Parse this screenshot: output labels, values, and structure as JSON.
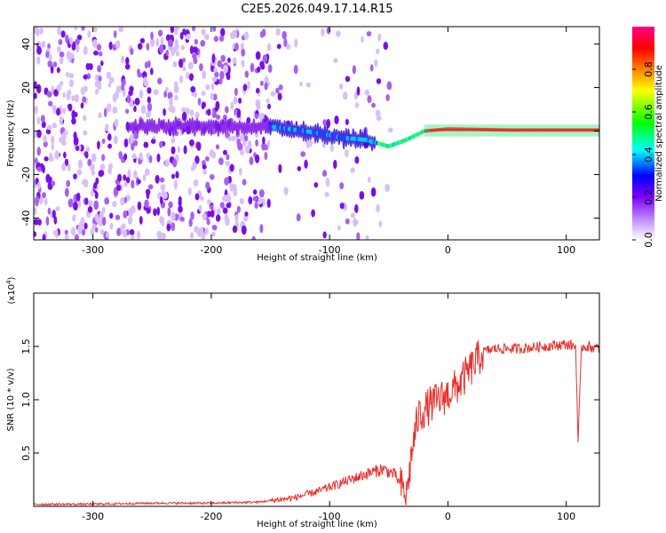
{
  "chart_data": [
    {
      "type": "heatmap",
      "title": "C2E5.2026.049.17.14.R15",
      "xlabel": "Height of straight line (km)",
      "ylabel": "Frequency (Hz)",
      "xlim": [
        -350,
        128
      ],
      "ylim": [
        -50,
        48
      ],
      "xticks": [
        -300,
        -200,
        -100,
        0,
        100
      ],
      "yticks": [
        -40,
        -20,
        0,
        20,
        40
      ],
      "colorbar": {
        "label": "Normalized spectral amplitude",
        "range": [
          0,
          1
        ],
        "ticks": [
          "0.0",
          "0.2",
          "0.4",
          "0.6",
          "0.8"
        ],
        "tick_values": [
          0.0,
          0.2,
          0.4,
          0.6,
          0.8
        ],
        "colors": [
          "#ffffff",
          "#8000ff",
          "#0000ff",
          "#00ffff",
          "#00ff00",
          "#ffff00",
          "#ff8000",
          "#ff0000",
          "#ff00aa"
        ]
      },
      "ridge": {
        "description": "carrier track",
        "points": [
          [
            -150,
            2
          ],
          [
            -120,
            0
          ],
          [
            -90,
            -3
          ],
          [
            -70,
            -4
          ],
          [
            -50,
            -7
          ],
          [
            -35,
            -4
          ],
          [
            -20,
            0
          ],
          [
            -10,
            0.5
          ],
          [
            0,
            1
          ],
          [
            50,
            0.5
          ],
          [
            128,
            0.5
          ]
        ]
      }
    },
    {
      "type": "line",
      "xlabel": "Height of straight line (km)",
      "ylabel": "SNR (10 * v/v)",
      "yscale_label": "(x10",
      "yscale_exp": "4",
      "yscale_close": ")",
      "xlim": [
        -350,
        128
      ],
      "ylim": [
        0,
        2.0
      ],
      "xticks": [
        -300,
        -200,
        -100,
        0,
        100
      ],
      "yticks": [
        "0.5",
        "1.0",
        "1.5"
      ],
      "ytick_values": [
        0.5,
        1.0,
        1.5
      ],
      "color": "#e8302c",
      "series": [
        {
          "name": "SNR",
          "x": [
            -350,
            -300,
            -250,
            -200,
            -160,
            -130,
            -110,
            -90,
            -70,
            -55,
            -45,
            -35,
            -30,
            -25,
            -15,
            0,
            10,
            20,
            30,
            40,
            60,
            80,
            100,
            108,
            110,
            113,
            118,
            128
          ],
          "y": [
            0.02,
            0.02,
            0.03,
            0.03,
            0.04,
            0.08,
            0.14,
            0.22,
            0.3,
            0.35,
            0.3,
            0.1,
            0.55,
            0.85,
            0.95,
            1.05,
            1.15,
            1.3,
            1.45,
            1.48,
            1.48,
            1.5,
            1.52,
            1.5,
            0.6,
            1.5,
            1.5,
            1.48
          ]
        }
      ]
    }
  ]
}
